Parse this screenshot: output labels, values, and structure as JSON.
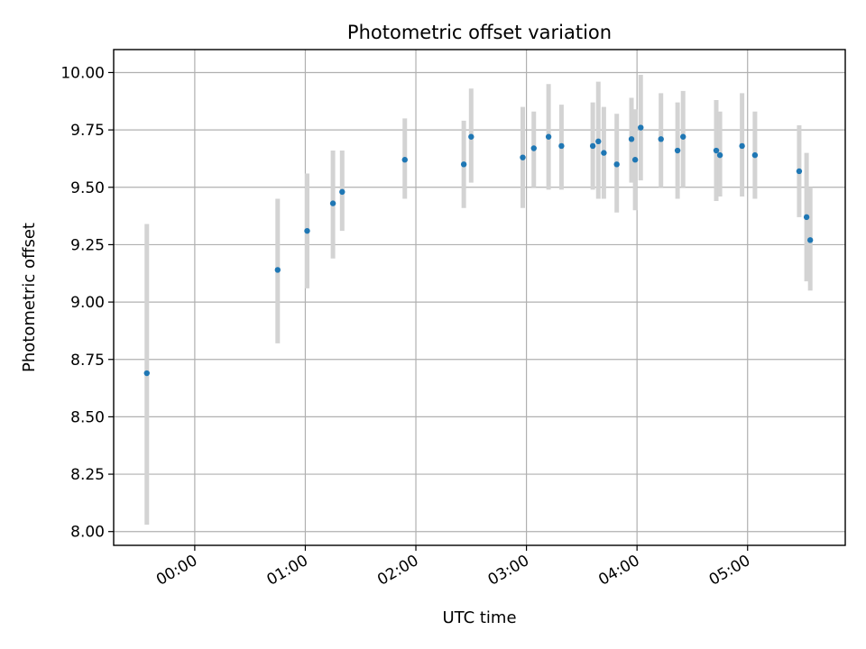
{
  "chart_data": {
    "type": "scatter",
    "title": "Photometric offset variation",
    "xlabel": "UTC time",
    "ylabel": "Photometric offset",
    "x_is_time": true,
    "xlim": [
      "23:16",
      "05:53"
    ],
    "ylim": [
      7.94,
      10.1
    ],
    "grid": true,
    "x_ticks": [
      "00:00",
      "01:00",
      "02:00",
      "03:00",
      "04:00",
      "05:00"
    ],
    "y_ticks": [
      "8.00",
      "8.25",
      "8.50",
      "8.75",
      "9.00",
      "9.25",
      "9.50",
      "9.75",
      "10.00"
    ],
    "series": [
      {
        "marker_color": "#1f77b4",
        "errorbar_color": "#d3d3d3",
        "points": [
          {
            "x": "23:34",
            "y": 8.69,
            "ylow": 8.03,
            "yhigh": 9.34
          },
          {
            "x": "00:45",
            "y": 9.14,
            "ylow": 8.82,
            "yhigh": 9.45
          },
          {
            "x": "01:01",
            "y": 9.31,
            "ylow": 9.06,
            "yhigh": 9.56
          },
          {
            "x": "01:15",
            "y": 9.43,
            "ylow": 9.19,
            "yhigh": 9.66
          },
          {
            "x": "01:20",
            "y": 9.48,
            "ylow": 9.31,
            "yhigh": 9.66
          },
          {
            "x": "01:54",
            "y": 9.62,
            "ylow": 9.45,
            "yhigh": 9.8
          },
          {
            "x": "02:26",
            "y": 9.6,
            "ylow": 9.41,
            "yhigh": 9.79
          },
          {
            "x": "02:30",
            "y": 9.72,
            "ylow": 9.52,
            "yhigh": 9.93
          },
          {
            "x": "02:58",
            "y": 9.63,
            "ylow": 9.41,
            "yhigh": 9.85
          },
          {
            "x": "03:04",
            "y": 9.67,
            "ylow": 9.5,
            "yhigh": 9.83
          },
          {
            "x": "03:12",
            "y": 9.72,
            "ylow": 9.49,
            "yhigh": 9.95
          },
          {
            "x": "03:19",
            "y": 9.68,
            "ylow": 9.49,
            "yhigh": 9.86
          },
          {
            "x": "03:36",
            "y": 9.68,
            "ylow": 9.49,
            "yhigh": 9.87
          },
          {
            "x": "03:39",
            "y": 9.7,
            "ylow": 9.45,
            "yhigh": 9.96
          },
          {
            "x": "03:42",
            "y": 9.65,
            "ylow": 9.45,
            "yhigh": 9.85
          },
          {
            "x": "03:49",
            "y": 9.6,
            "ylow": 9.39,
            "yhigh": 9.82
          },
          {
            "x": "03:57",
            "y": 9.71,
            "ylow": 9.52,
            "yhigh": 9.89
          },
          {
            "x": "03:59",
            "y": 9.62,
            "ylow": 9.4,
            "yhigh": 9.84
          },
          {
            "x": "04:02",
            "y": 9.76,
            "ylow": 9.53,
            "yhigh": 9.99
          },
          {
            "x": "04:13",
            "y": 9.71,
            "ylow": 9.5,
            "yhigh": 9.91
          },
          {
            "x": "04:22",
            "y": 9.66,
            "ylow": 9.45,
            "yhigh": 9.87
          },
          {
            "x": "04:25",
            "y": 9.72,
            "ylow": 9.5,
            "yhigh": 9.92
          },
          {
            "x": "04:43",
            "y": 9.66,
            "ylow": 9.44,
            "yhigh": 9.88
          },
          {
            "x": "04:45",
            "y": 9.64,
            "ylow": 9.46,
            "yhigh": 9.83
          },
          {
            "x": "04:57",
            "y": 9.68,
            "ylow": 9.46,
            "yhigh": 9.91
          },
          {
            "x": "05:04",
            "y": 9.64,
            "ylow": 9.45,
            "yhigh": 9.83
          },
          {
            "x": "05:28",
            "y": 9.57,
            "ylow": 9.37,
            "yhigh": 9.77
          },
          {
            "x": "05:32",
            "y": 9.37,
            "ylow": 9.09,
            "yhigh": 9.65
          },
          {
            "x": "05:34",
            "y": 9.27,
            "ylow": 9.05,
            "yhigh": 9.5
          }
        ]
      }
    ]
  }
}
